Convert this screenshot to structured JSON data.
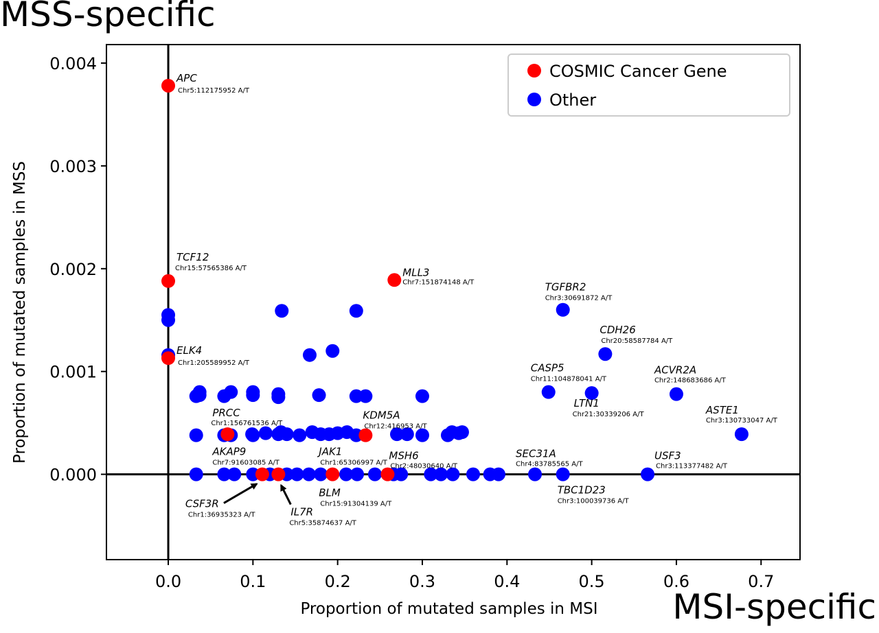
{
  "corner_labels": {
    "top_left": "MSS-specific",
    "bottom_right": "MSI-specific"
  },
  "chart_data": {
    "type": "scatter",
    "title": "",
    "xlabel": "Proportion of mutated samples in MSI",
    "ylabel": "Proportion of mutated samples in MSS",
    "xlim": [
      -0.073,
      0.746
    ],
    "ylim": [
      -0.00083,
      0.00418
    ],
    "xticks": [
      0.0,
      0.1,
      0.2,
      0.3,
      0.4,
      0.5,
      0.6,
      0.7
    ],
    "xtick_labels": [
      "0.0",
      "0.1",
      "0.2",
      "0.3",
      "0.4",
      "0.5",
      "0.6",
      "0.7"
    ],
    "yticks": [
      0.0,
      0.001,
      0.002,
      0.003,
      0.004
    ],
    "ytick_labels": [
      "0.000",
      "0.001",
      "0.002",
      "0.003",
      "0.004"
    ],
    "grid": false,
    "reference_lines": {
      "x": 0,
      "y": 0
    },
    "legend": {
      "position": "upper-right",
      "entries": [
        {
          "name": "COSMIC Cancer Gene",
          "color": "#ff0000"
        },
        {
          "name": "Other",
          "color": "#0000ff"
        }
      ]
    },
    "series": [
      {
        "name": "Other",
        "color": "#0000ff",
        "points": [
          [
            0.0,
            0.00155
          ],
          [
            0.0,
            0.0015
          ],
          [
            0.0,
            0.00116
          ],
          [
            0.134,
            0.00159
          ],
          [
            0.222,
            0.00159
          ],
          [
            0.466,
            0.0016
          ],
          [
            0.167,
            0.00116
          ],
          [
            0.194,
            0.0012
          ],
          [
            0.516,
            0.00117
          ],
          [
            0.033,
            0.00076
          ],
          [
            0.037,
            0.0008
          ],
          [
            0.037,
            0.00077
          ],
          [
            0.066,
            0.00076
          ],
          [
            0.074,
            0.0008
          ],
          [
            0.1,
            0.00077
          ],
          [
            0.1,
            0.0008
          ],
          [
            0.13,
            0.00075
          ],
          [
            0.13,
            0.00078
          ],
          [
            0.178,
            0.00077
          ],
          [
            0.222,
            0.00076
          ],
          [
            0.233,
            0.00076
          ],
          [
            0.3,
            0.00076
          ],
          [
            0.449,
            0.0008
          ],
          [
            0.5,
            0.00079
          ],
          [
            0.6,
            0.00078
          ],
          [
            0.033,
            0.00038
          ],
          [
            0.066,
            0.00038
          ],
          [
            0.074,
            0.00038
          ],
          [
            0.099,
            0.00039
          ],
          [
            0.1,
            0.00038
          ],
          [
            0.115,
            0.0004
          ],
          [
            0.13,
            0.00039
          ],
          [
            0.133,
            0.00041
          ],
          [
            0.14,
            0.00039
          ],
          [
            0.155,
            0.00038
          ],
          [
            0.17,
            0.00041
          ],
          [
            0.18,
            0.00039
          ],
          [
            0.19,
            0.00039
          ],
          [
            0.2,
            0.0004
          ],
          [
            0.211,
            0.00041
          ],
          [
            0.222,
            0.00038
          ],
          [
            0.27,
            0.00039
          ],
          [
            0.282,
            0.00039
          ],
          [
            0.3,
            0.00038
          ],
          [
            0.33,
            0.00038
          ],
          [
            0.335,
            0.00041
          ],
          [
            0.343,
            0.0004
          ],
          [
            0.347,
            0.00041
          ],
          [
            0.677,
            0.00039
          ],
          [
            0.033,
            0.0
          ],
          [
            0.066,
            0.0
          ],
          [
            0.078,
            0.0
          ],
          [
            0.1,
            0.0
          ],
          [
            0.12,
            0.0
          ],
          [
            0.14,
            0.0
          ],
          [
            0.152,
            0.0
          ],
          [
            0.166,
            0.0
          ],
          [
            0.18,
            0.0
          ],
          [
            0.21,
            0.0
          ],
          [
            0.223,
            0.0
          ],
          [
            0.244,
            0.0
          ],
          [
            0.266,
            0.0
          ],
          [
            0.275,
            0.0
          ],
          [
            0.31,
            0.0
          ],
          [
            0.322,
            0.0
          ],
          [
            0.336,
            0.0
          ],
          [
            0.36,
            0.0
          ],
          [
            0.38,
            0.0
          ],
          [
            0.39,
            0.0
          ],
          [
            0.433,
            0.0
          ],
          [
            0.466,
            0.0
          ],
          [
            0.566,
            0.0
          ]
        ]
      },
      {
        "name": "COSMIC Cancer Gene",
        "color": "#ff0000",
        "points": [
          [
            0.0,
            0.00378
          ],
          [
            0.0,
            0.00188
          ],
          [
            0.0,
            0.00113
          ],
          [
            0.267,
            0.00189
          ],
          [
            0.233,
            0.00038
          ],
          [
            0.07,
            0.00039
          ],
          [
            0.111,
            0.0
          ],
          [
            0.13,
            0.0
          ],
          [
            0.194,
            0.0
          ],
          [
            0.259,
            0.0
          ]
        ]
      }
    ],
    "annotations": [
      {
        "gene": "APC",
        "detail": "Chr5:112175952 A/T",
        "x": 0.0,
        "y": 0.00378
      },
      {
        "gene": "TCF12",
        "detail": "Chr15:57565386 A/T",
        "x": 0.0,
        "y": 0.00188
      },
      {
        "gene": "ELK4",
        "detail": "Chr1:205589952 A/T",
        "x": 0.0,
        "y": 0.00113
      },
      {
        "gene": "MLL3",
        "detail": "Chr7:151874148 A/T",
        "x": 0.267,
        "y": 0.00189
      },
      {
        "gene": "TGFBR2",
        "detail": "Chr3:30691872 A/T",
        "x": 0.466,
        "y": 0.0016
      },
      {
        "gene": "CDH26",
        "detail": "Chr20:58587784 A/T",
        "x": 0.516,
        "y": 0.00117
      },
      {
        "gene": "CASP5",
        "detail": "Chr11:104878041 A/T",
        "x": 0.449,
        "y": 0.0008
      },
      {
        "gene": "ACVR2A",
        "detail": "Chr2:148683686 A/T",
        "x": 0.6,
        "y": 0.00078
      },
      {
        "gene": "LTN1",
        "detail": "Chr21:30339206 A/T",
        "x": 0.5,
        "y": 0.00079
      },
      {
        "gene": "ASTE1",
        "detail": "Chr3:130733047 A/T",
        "x": 0.677,
        "y": 0.00039
      },
      {
        "gene": "PRCC",
        "detail": "Chr1:156761536 A/T",
        "x": 0.07,
        "y": 0.00039
      },
      {
        "gene": "KDM5A",
        "detail": "Chr12:416953 A/T",
        "x": 0.233,
        "y": 0.00038
      },
      {
        "gene": "AKAP9",
        "detail": "Chr7:91603085 A/T",
        "x": 0.07,
        "y": 0.0
      },
      {
        "gene": "JAK1",
        "detail": "Chr1:65306997 A/T",
        "x": 0.194,
        "y": 0.0
      },
      {
        "gene": "MSH6",
        "detail": "Chr2:48030640 A/T",
        "x": 0.259,
        "y": 0.0
      },
      {
        "gene": "SEC31A",
        "detail": "Chr4:83785565 A/T",
        "x": 0.433,
        "y": 0.0
      },
      {
        "gene": "USF3",
        "detail": "Chr3:113377482 A/T",
        "x": 0.566,
        "y": 0.0
      },
      {
        "gene": "BLM",
        "detail": "Chr15:91304139 A/T",
        "x": 0.194,
        "y": 0.0
      },
      {
        "gene": "TBC1D23",
        "detail": "Chr3:100039736 A/T",
        "x": 0.466,
        "y": 0.0
      },
      {
        "gene": "CSF3R",
        "detail": "Chr1:36935323 A/T",
        "x": 0.111,
        "y": 0.0
      },
      {
        "gene": "IL7R",
        "detail": "Chr5:35874637 A/T",
        "x": 0.13,
        "y": 0.0
      }
    ]
  }
}
